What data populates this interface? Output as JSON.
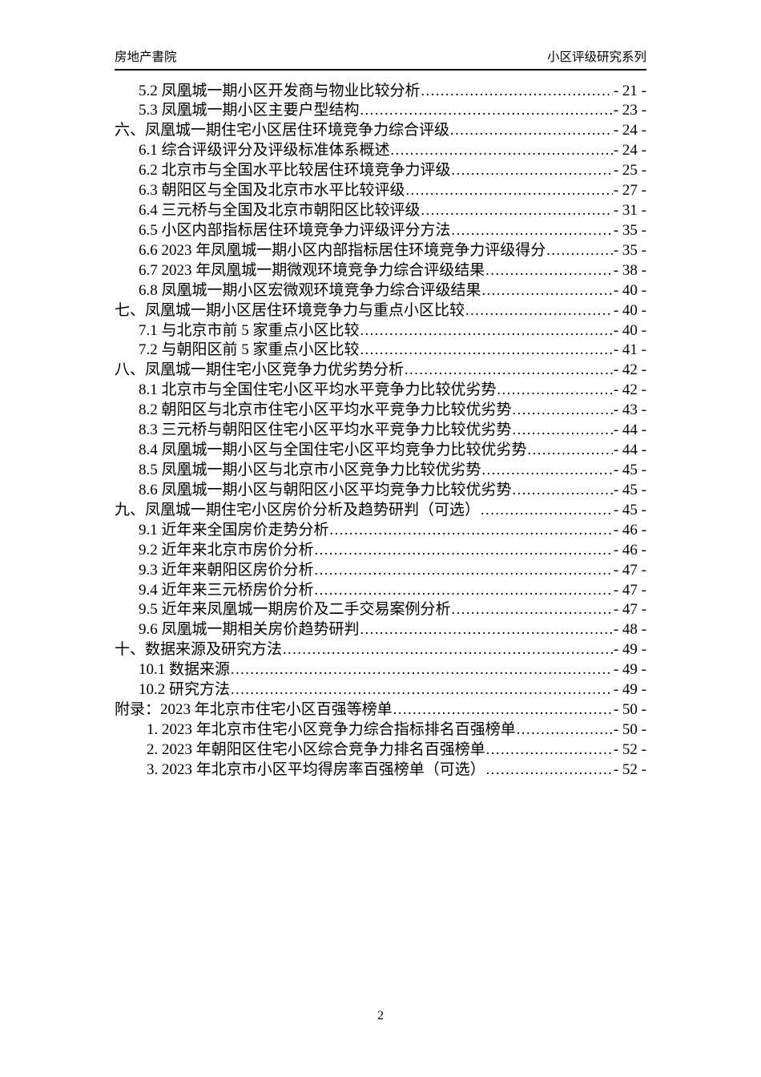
{
  "header": {
    "left": "房地产書院",
    "right": "小区评级研究系列"
  },
  "footer": {
    "page_number": "2"
  },
  "toc": {
    "entries": [
      {
        "level": 2,
        "label": "5.2 凤凰城一期小区开发商与物业比较分析",
        "page": "- 21 -"
      },
      {
        "level": 2,
        "label": "5.3 凤凰城一期小区主要户型结构",
        "page": "- 23 -"
      },
      {
        "level": 1,
        "label": "六、凤凰城一期住宅小区居住环境竞争力综合评级",
        "page": "- 24 -"
      },
      {
        "level": 2,
        "label": "6.1 综合评级评分及评级标准体系概述",
        "page": "- 24 -"
      },
      {
        "level": 2,
        "label": "6.2 北京市与全国水平比较居住环境竞争力评级",
        "page": "- 25 -"
      },
      {
        "level": 2,
        "label": "6.3 朝阳区与全国及北京市水平比较评级",
        "page": "- 27 -"
      },
      {
        "level": 2,
        "label": "6.4 三元桥与全国及北京市朝阳区比较评级",
        "page": "- 31 -"
      },
      {
        "level": 2,
        "label": "6.5 小区内部指标居住环境竞争力评级评分方法",
        "page": "- 35 -"
      },
      {
        "level": 2,
        "label": "6.6 2023 年凤凰城一期小区内部指标居住环境竞争力评级得分",
        "page": "- 35 -"
      },
      {
        "level": 2,
        "label": "6.7 2023 年凤凰城一期微观环境竞争力综合评级结果",
        "page": "- 38 -"
      },
      {
        "level": 2,
        "label": "6.8 凤凰城一期小区宏微观环境竞争力综合评级结果",
        "page": "- 40 -"
      },
      {
        "level": 1,
        "label": "七、凤凰城一期小区居住环境竞争力与重点小区比较",
        "page": "- 40 -"
      },
      {
        "level": 2,
        "label": "7.1 与北京市前 5 家重点小区比较",
        "page": "- 40 -"
      },
      {
        "level": 2,
        "label": "7.2 与朝阳区前 5 家重点小区比较",
        "page": "- 41 -"
      },
      {
        "level": 1,
        "label": "八、凤凰城一期住宅小区竞争力优劣势分析",
        "page": "- 42 -"
      },
      {
        "level": 2,
        "label": "8.1 北京市与全国住宅小区平均水平竞争力比较优劣势",
        "page": "- 42 -"
      },
      {
        "level": 2,
        "label": "8.2 朝阳区与北京市住宅小区平均水平竞争力比较优劣势",
        "page": "- 43 -"
      },
      {
        "level": 2,
        "label": "8.3 三元桥与朝阳区住宅小区平均水平竞争力比较优劣势",
        "page": "- 44 -"
      },
      {
        "level": 2,
        "label": "8.4 凤凰城一期小区与全国住宅小区平均竞争力比较优劣势",
        "page": "- 44 -"
      },
      {
        "level": 2,
        "label": "8.5 凤凰城一期小区与北京市小区竞争力比较优劣势",
        "page": "- 45 -"
      },
      {
        "level": 2,
        "label": "8.6 凤凰城一期小区与朝阳区小区平均竞争力比较优劣势",
        "page": "- 45 -"
      },
      {
        "level": 1,
        "label": "九、凤凰城一期住宅小区房价分析及趋势研判（可选） ",
        "page": "- 45 -"
      },
      {
        "level": 2,
        "label": "9.1 近年来全国房价走势分析",
        "page": "- 46 -"
      },
      {
        "level": 2,
        "label": "9.2 近年来北京市房价分析",
        "page": "- 46 -"
      },
      {
        "level": 2,
        "label": "9.3 近年来朝阳区房价分析",
        "page": "- 47 -"
      },
      {
        "level": 2,
        "label": "9.4 近年来三元桥房价分析",
        "page": "- 47 -"
      },
      {
        "level": 2,
        "label": "9.5 近年来凤凰城一期房价及二手交易案例分析",
        "page": "- 47 -"
      },
      {
        "level": 2,
        "label": "9.6 凤凰城一期相关房价趋势研判",
        "page": "- 48 -"
      },
      {
        "level": 1,
        "label": "十、数据来源及研究方法",
        "page": "- 49 -"
      },
      {
        "level": 2,
        "label": "10.1 数据来源",
        "page": "- 49 -"
      },
      {
        "level": 2,
        "label": "10.2 研究方法",
        "page": "- 49 -"
      },
      {
        "level": 1,
        "label": "附录：2023 年北京市住宅小区百强等榜单",
        "page": "- 50 -"
      },
      {
        "level": 3,
        "label": "1. 2023 年北京市住宅小区竞争力综合指标排名百强榜单",
        "page": "- 50 -"
      },
      {
        "level": 3,
        "label": "2. 2023 年朝阳区住宅小区综合竞争力排名百强榜单",
        "page": "- 52 -"
      },
      {
        "level": 3,
        "label": "3. 2023 年北京市小区平均得房率百强榜单（可选） ",
        "page": "- 52 -"
      }
    ]
  }
}
